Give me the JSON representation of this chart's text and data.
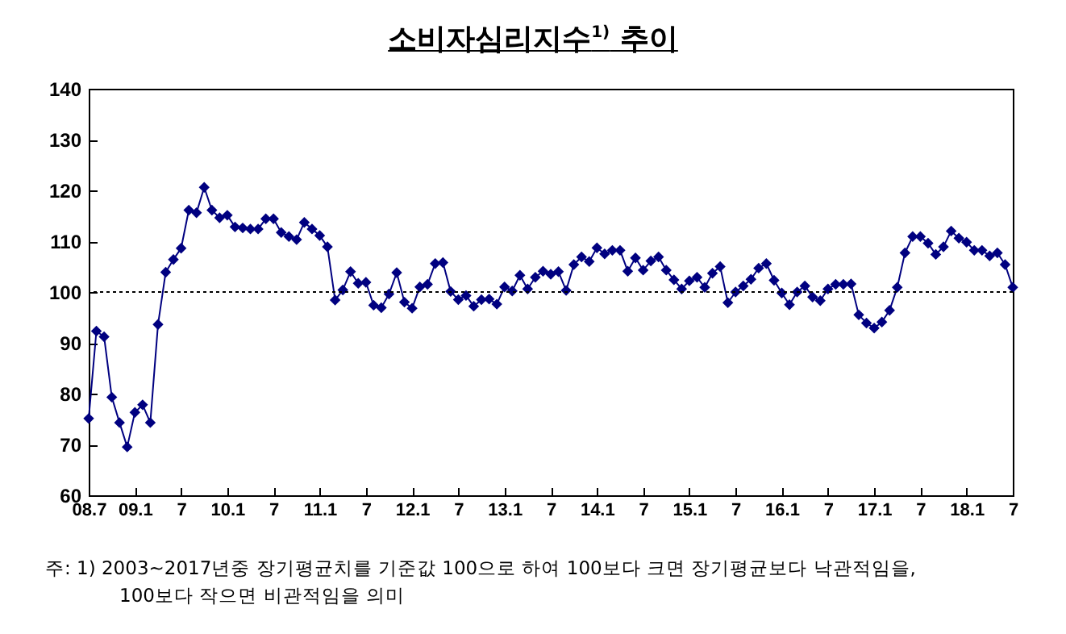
{
  "chart_data": {
    "type": "line",
    "title": "소비자심리지수$^{1)}$ 추이",
    "categories": [
      "08.7",
      null,
      null,
      null,
      null,
      null,
      "09.1",
      null,
      null,
      null,
      null,
      null,
      "7",
      null,
      null,
      null,
      null,
      null,
      "10.1",
      null,
      null,
      null,
      null,
      null,
      "7",
      null,
      null,
      null,
      null,
      null,
      "11.1",
      null,
      null,
      null,
      null,
      null,
      "7",
      null,
      null,
      null,
      null,
      null,
      "12.1",
      null,
      null,
      null,
      null,
      null,
      "7",
      null,
      null,
      null,
      null,
      null,
      "13.1",
      null,
      null,
      null,
      null,
      null,
      "7",
      null,
      null,
      null,
      null,
      null,
      "14.1",
      null,
      null,
      null,
      null,
      null,
      "7",
      null,
      null,
      null,
      null,
      null,
      "15.1",
      null,
      null,
      null,
      null,
      null,
      "7",
      null,
      null,
      null,
      null,
      null,
      "16.1",
      null,
      null,
      null,
      null,
      null,
      "7",
      null,
      null,
      null,
      null,
      null,
      "17.1",
      null,
      null,
      null,
      null,
      null,
      "7",
      null,
      null,
      null,
      null,
      null,
      "18.1",
      null,
      null,
      null,
      null,
      null,
      "7"
    ],
    "series": [
      {
        "color": "#000080",
        "values": [
          75.1,
          92.3,
          91.2,
          79.3,
          74.3,
          69.5,
          76.3,
          77.8,
          74.3,
          93.6,
          103.9,
          106.4,
          108.6,
          116.1,
          115.6,
          120.6,
          116.1,
          114.6,
          115.1,
          112.8,
          112.6,
          112.4,
          112.4,
          114.4,
          114.4,
          111.7,
          110.9,
          110.3,
          113.7,
          112.4,
          111.1,
          108.9,
          98.4,
          100.4,
          104.0,
          101.7,
          101.9,
          97.4,
          96.9,
          99.6,
          103.8,
          98.0,
          96.8,
          101.0,
          101.5,
          105.6,
          105.8,
          100.1,
          98.5,
          99.3,
          97.2,
          98.5,
          98.6,
          97.6,
          101.0,
          100.2,
          103.3,
          100.6,
          102.9,
          104.1,
          103.5,
          104.0,
          100.3,
          105.4,
          106.9,
          106.0,
          108.7,
          107.5,
          108.2,
          108.2,
          104.1,
          106.7,
          104.3,
          106.1,
          106.9,
          104.3,
          102.4,
          100.6,
          102.2,
          102.9,
          100.9,
          103.7,
          105.0,
          97.9,
          100.0,
          101.2,
          102.5,
          104.7,
          105.6,
          102.3,
          99.8,
          97.5,
          100.0,
          101.2,
          99.0,
          98.3,
          100.6,
          101.5,
          101.5,
          101.6,
          95.5,
          93.9,
          92.9,
          94.1,
          96.4,
          100.9,
          107.7,
          110.9,
          110.9,
          109.6,
          107.4,
          108.9,
          112.0,
          110.6,
          109.8,
          108.2,
          108.2,
          107.1,
          107.7,
          105.4,
          100.9
        ]
      }
    ],
    "ylim": [
      60,
      140
    ],
    "yticks": [
      60,
      70,
      80,
      90,
      100,
      110,
      120,
      130,
      140
    ],
    "marker": "diamond",
    "line_style": "solid",
    "ref_lines": [
      {
        "axis": "y",
        "value": 100,
        "color": "#000000",
        "line_style": "dotted"
      }
    ],
    "annotations": [
      "주: 1) 2003~2017년중 장기평균치를 기준값 100으로 하여 100보다 크면 장기평균보다 낙관적임을, 100보다 작으면 비관적임을 의미"
    ]
  }
}
